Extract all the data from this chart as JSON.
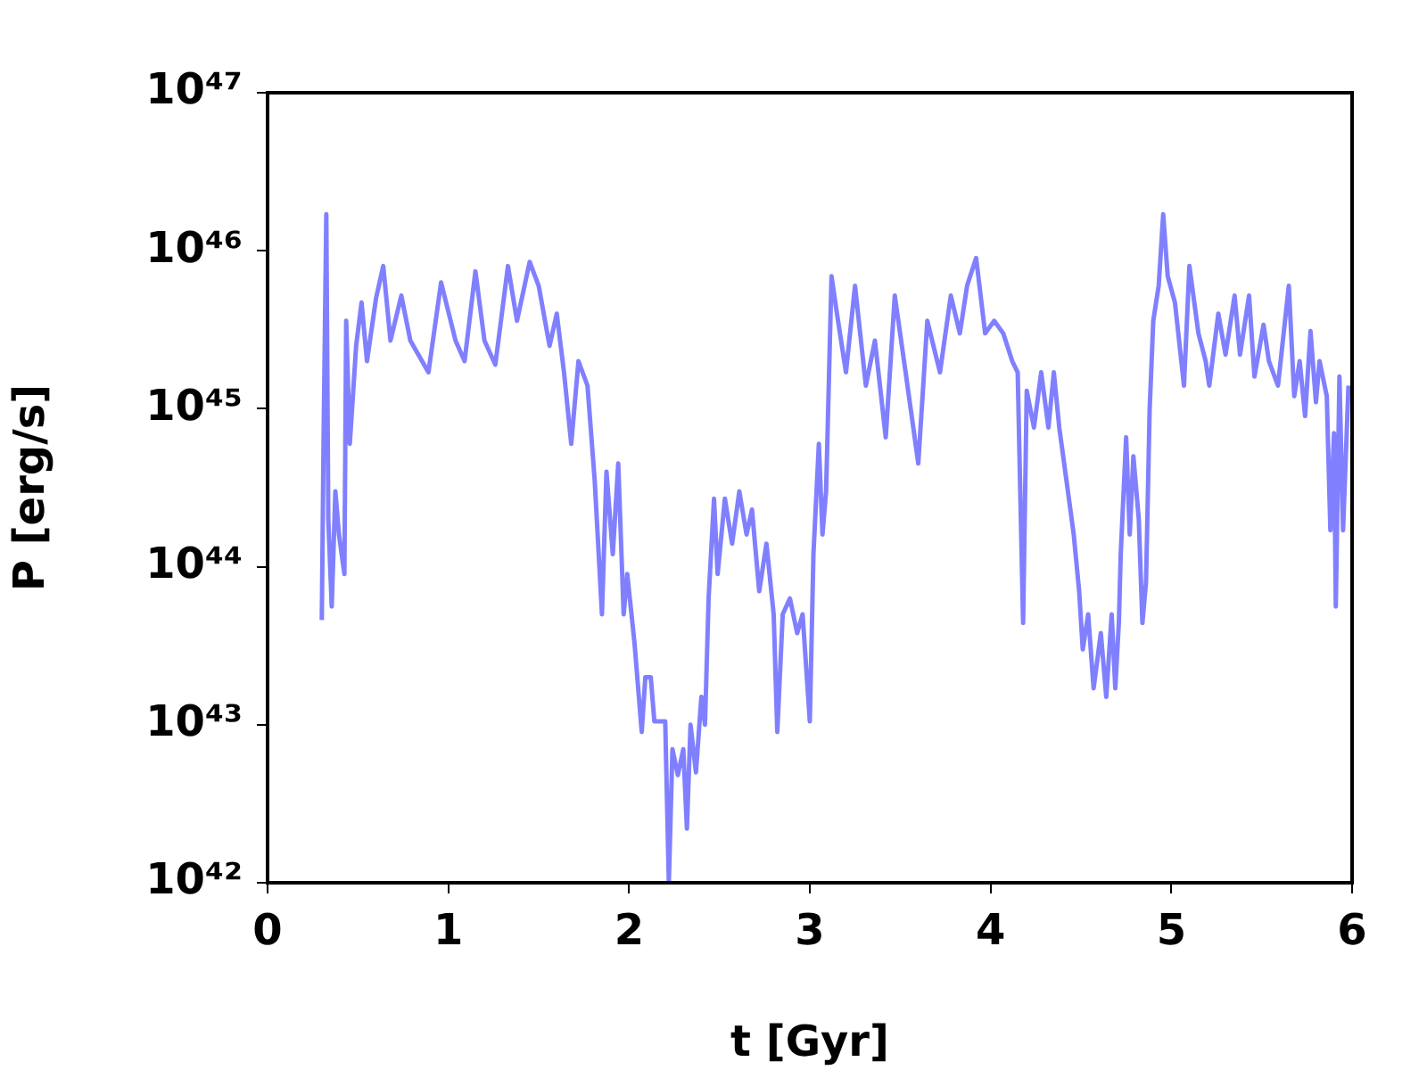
{
  "chart_data": {
    "type": "line",
    "xlabel": "t [Gyr]",
    "ylabel": "P [erg/s]",
    "log": "y",
    "grid": false,
    "legend": false,
    "marker": "none",
    "line_style": "solid",
    "xlim": [
      0,
      6
    ],
    "xticks": [
      0,
      1,
      2,
      3,
      4,
      5,
      6
    ],
    "ylim": [
      1e+42,
      1e+47
    ],
    "yticks": [
      {
        "value": 1e+42,
        "label": "10⁴²"
      },
      {
        "value": 1e+43,
        "label": "10⁴³"
      },
      {
        "value": 1e+44,
        "label": "10⁴⁴"
      },
      {
        "value": 1e+45,
        "label": "10⁴⁵"
      },
      {
        "value": 1e+46,
        "label": "10⁴⁶"
      },
      {
        "value": 1e+47,
        "label": "10⁴⁷"
      }
    ],
    "series": [
      {
        "color": "#8080ff",
        "x": [
          0.3,
          0.31,
          0.325,
          0.336,
          0.355,
          0.375,
          0.395,
          0.425,
          0.435,
          0.455,
          0.49,
          0.52,
          0.55,
          0.6,
          0.64,
          0.68,
          0.74,
          0.79,
          0.89,
          0.96,
          1.04,
          1.09,
          1.15,
          1.2,
          1.26,
          1.33,
          1.38,
          1.45,
          1.5,
          1.56,
          1.6,
          1.64,
          1.68,
          1.72,
          1.77,
          1.81,
          1.85,
          1.875,
          1.91,
          1.94,
          1.97,
          1.99,
          2.03,
          2.07,
          2.09,
          2.12,
          2.14,
          2.2,
          2.22,
          2.24,
          2.27,
          2.3,
          2.32,
          2.34,
          2.37,
          2.4,
          2.42,
          2.44,
          2.47,
          2.49,
          2.53,
          2.57,
          2.61,
          2.65,
          2.68,
          2.72,
          2.76,
          2.8,
          2.82,
          2.85,
          2.89,
          2.93,
          2.96,
          3.0,
          3.02,
          3.05,
          3.07,
          3.09,
          3.12,
          3.15,
          3.2,
          3.25,
          3.31,
          3.36,
          3.42,
          3.47,
          3.53,
          3.6,
          3.65,
          3.72,
          3.78,
          3.83,
          3.87,
          3.92,
          3.97,
          4.02,
          4.07,
          4.12,
          4.15,
          4.18,
          4.2,
          4.24,
          4.28,
          4.32,
          4.35,
          4.38,
          4.42,
          4.46,
          4.49,
          4.51,
          4.54,
          4.57,
          4.61,
          4.64,
          4.67,
          4.69,
          4.71,
          4.72,
          4.75,
          4.77,
          4.79,
          4.82,
          4.84,
          4.86,
          4.88,
          4.9,
          4.93,
          4.955,
          4.98,
          5.02,
          5.07,
          5.1,
          5.15,
          5.19,
          5.21,
          5.26,
          5.3,
          5.35,
          5.38,
          5.43,
          5.46,
          5.51,
          5.54,
          5.59,
          5.65,
          5.68,
          5.71,
          5.74,
          5.77,
          5.8,
          5.82,
          5.86,
          5.88,
          5.9,
          5.91,
          5.93,
          5.95,
          5.98
        ],
        "values": [
          4.6e+43,
          6.6e+44,
          1.7e+46,
          2e+44,
          5.6e+43,
          3e+44,
          1.6e+44,
          9e+43,
          3.6e+45,
          6e+44,
          2.5e+45,
          4.7e+45,
          2e+45,
          5e+45,
          8e+45,
          2.7e+45,
          5.2e+45,
          2.7e+45,
          1.7e+45,
          6.3e+45,
          2.7e+45,
          2e+45,
          7.4e+45,
          2.7e+45,
          1.9e+45,
          8e+45,
          3.6e+45,
          8.5e+45,
          6e+45,
          2.5e+45,
          4e+45,
          1.7e+45,
          6e+44,
          2e+45,
          1.4e+45,
          3.5e+44,
          5e+43,
          4e+44,
          1.2e+44,
          4.5e+44,
          5e+43,
          9e+43,
          3.3e+43,
          9e+42,
          2e+43,
          2e+43,
          1.05e+43,
          1.05e+43,
          1e+42,
          7e+42,
          4.8e+42,
          7e+42,
          2.2e+42,
          1e+43,
          5e+42,
          1.5e+43,
          1e+43,
          6.3e+43,
          2.7e+44,
          9e+43,
          2.7e+44,
          1.4e+44,
          3e+44,
          1.6e+44,
          2.3e+44,
          7e+43,
          1.4e+44,
          5e+43,
          9e+42,
          5e+43,
          6.3e+43,
          3.8e+43,
          5e+43,
          1.05e+43,
          1.2e+44,
          6e+44,
          1.6e+44,
          3e+44,
          6.9e+45,
          4e+45,
          1.7e+45,
          6e+45,
          1.4e+45,
          2.7e+45,
          6.6e+44,
          5.2e+45,
          1.7e+45,
          4.5e+44,
          3.6e+45,
          1.7e+45,
          5.2e+45,
          3e+45,
          6e+45,
          9e+45,
          3e+45,
          3.6e+45,
          3e+45,
          2e+45,
          1.7e+45,
          4.4e+43,
          1.3e+45,
          7.6e+44,
          1.7e+45,
          7.6e+44,
          1.7e+45,
          7.6e+44,
          3.5e+44,
          1.6e+44,
          7e+43,
          3e+43,
          5e+43,
          1.7e+43,
          3.8e+43,
          1.5e+43,
          5e+43,
          1.7e+43,
          4.5e+43,
          1.2e+44,
          6.6e+44,
          1.6e+44,
          5e+44,
          2e+44,
          4.4e+43,
          8e+43,
          9.8e+44,
          3.6e+45,
          6e+45,
          1.7e+46,
          6.9e+45,
          4.7e+45,
          1.4e+45,
          8e+45,
          3e+45,
          2e+45,
          1.4e+45,
          4e+45,
          2.2e+45,
          5.2e+45,
          2.2e+45,
          5.2e+45,
          1.6e+45,
          3.4e+45,
          2e+45,
          1.4e+45,
          6e+45,
          1.2e+45,
          2e+45,
          9e+44,
          3.1e+45,
          1.1e+45,
          2e+45,
          1.2e+45,
          1.7e+44,
          7e+44,
          5.6e+43,
          1.6e+45,
          1.7e+44,
          1.4e+45
        ]
      }
    ]
  }
}
